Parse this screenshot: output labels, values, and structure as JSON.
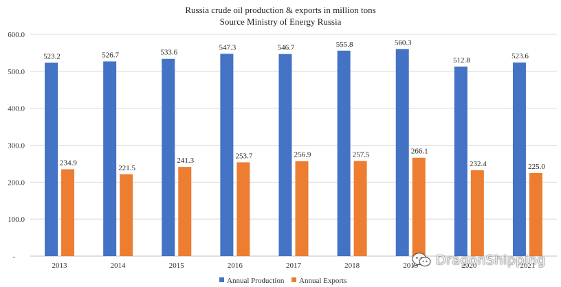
{
  "chart_data": {
    "type": "bar",
    "title": "Russia crude oil production & exports in million tons",
    "subtitle": "Source Ministry of Energy Russia",
    "categories": [
      "2013",
      "2014",
      "2015",
      "2016",
      "2017",
      "2018",
      "2019",
      "2020",
      "2021"
    ],
    "series": [
      {
        "name": "Annual Production",
        "color": "#4472c4",
        "values": [
          523.2,
          526.7,
          533.6,
          547.3,
          546.7,
          555.8,
          560.3,
          512.8,
          523.6
        ],
        "value_labels": [
          "523.2",
          "526.7",
          "533.6",
          "547.3",
          "546.7",
          "555.8",
          "560.3",
          "512.8",
          "523.6"
        ]
      },
      {
        "name": "Annual Exports",
        "color": "#ed7d31",
        "values": [
          234.9,
          221.5,
          241.3,
          253.7,
          256.9,
          257.5,
          266.1,
          232.4,
          225.0
        ],
        "value_labels": [
          "234.9",
          "221.5",
          "241.3",
          "253.7",
          "256.9",
          "257.5",
          "266.1",
          "232.4",
          "225.0"
        ]
      }
    ],
    "y_ticks": [
      {
        "value": 0,
        "label": "-"
      },
      {
        "value": 100,
        "label": "100.0"
      },
      {
        "value": 200,
        "label": "200.0"
      },
      {
        "value": 300,
        "label": "300.0"
      },
      {
        "value": 400,
        "label": "400.0"
      },
      {
        "value": 500,
        "label": "500.0"
      },
      {
        "value": 600,
        "label": "600.0"
      }
    ],
    "ylim": [
      0,
      600
    ],
    "grid": true,
    "legend_position": "bottom-center"
  },
  "watermark": {
    "text": "DragonShipping",
    "icon": "wechat-icon"
  }
}
